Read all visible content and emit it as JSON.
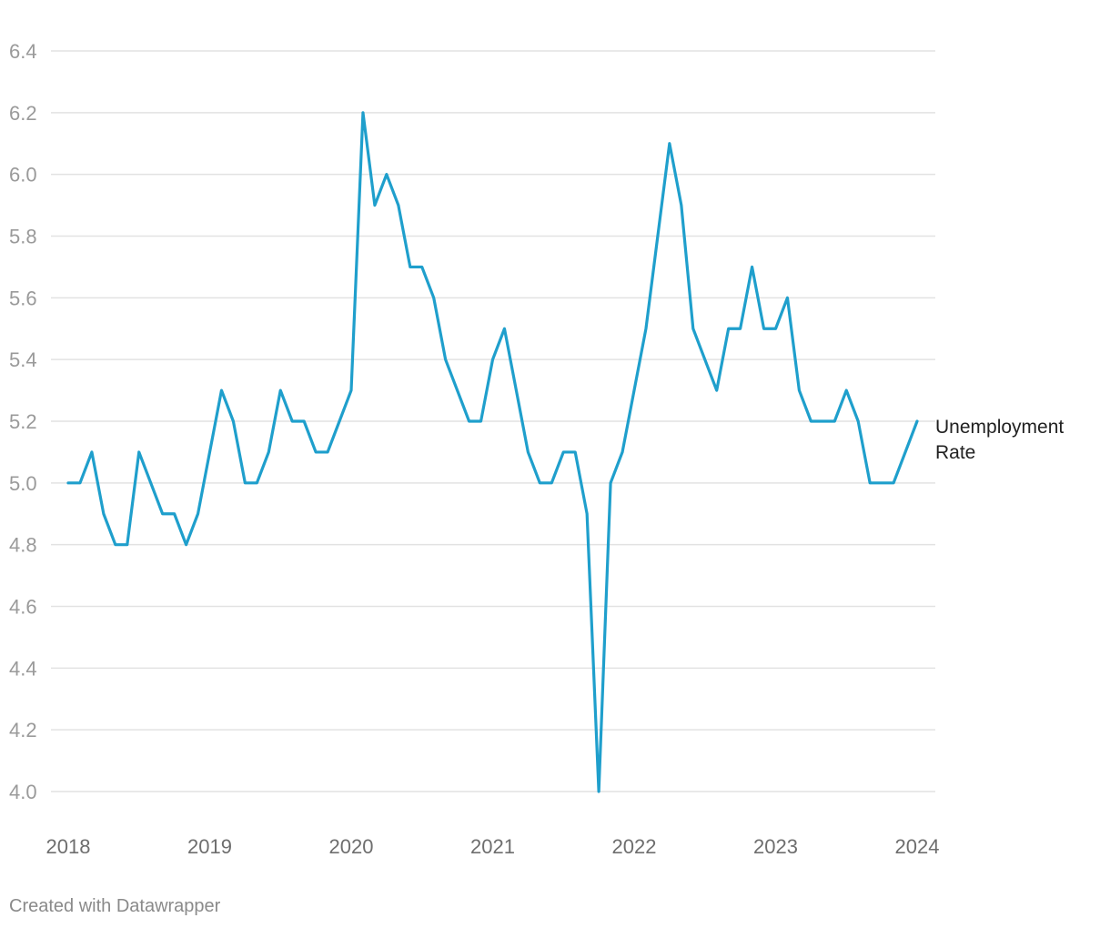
{
  "chart_data": {
    "type": "line",
    "title": "",
    "xlabel": "",
    "ylabel": "",
    "x_ticks": [
      "2018",
      "2019",
      "2020",
      "2021",
      "2022",
      "2023",
      "2024"
    ],
    "y_ticks": [
      "4.0",
      "4.2",
      "4.4",
      "4.6",
      "4.8",
      "5.0",
      "5.2",
      "5.4",
      "5.6",
      "5.8",
      "6.0",
      "6.2",
      "6.4"
    ],
    "ylim": [
      4.0,
      6.4
    ],
    "xlim": [
      "2018-01",
      "2024-01"
    ],
    "grid": true,
    "legend": "none",
    "x": [
      "2018-01",
      "2018-02",
      "2018-03",
      "2018-04",
      "2018-05",
      "2018-06",
      "2018-07",
      "2018-08",
      "2018-09",
      "2018-10",
      "2018-11",
      "2018-12",
      "2019-01",
      "2019-02",
      "2019-03",
      "2019-04",
      "2019-05",
      "2019-06",
      "2019-07",
      "2019-08",
      "2019-09",
      "2019-10",
      "2019-11",
      "2019-12",
      "2020-01",
      "2020-02",
      "2020-03",
      "2020-04",
      "2020-05",
      "2020-06",
      "2020-07",
      "2020-08",
      "2020-09",
      "2020-10",
      "2020-11",
      "2020-12",
      "2021-01",
      "2021-02",
      "2021-03",
      "2021-04",
      "2021-05",
      "2021-06",
      "2021-07",
      "2021-08",
      "2021-09",
      "2021-10",
      "2021-11",
      "2021-12",
      "2022-01",
      "2022-02",
      "2022-03",
      "2022-04",
      "2022-05",
      "2022-06",
      "2022-07",
      "2022-08",
      "2022-09",
      "2022-10",
      "2022-11",
      "2022-12",
      "2023-01",
      "2023-02",
      "2023-03",
      "2023-04",
      "2023-05",
      "2023-06",
      "2023-07",
      "2023-08",
      "2023-09",
      "2023-10",
      "2023-11",
      "2023-12",
      "2024-01"
    ],
    "series": [
      {
        "name": "Unemployment Rate",
        "color": "#1f9fcc",
        "values": [
          5.0,
          5.0,
          5.1,
          4.9,
          4.8,
          4.8,
          5.1,
          5.0,
          4.9,
          4.9,
          4.8,
          4.9,
          5.1,
          5.3,
          5.2,
          5.0,
          5.0,
          5.1,
          5.3,
          5.2,
          5.2,
          5.1,
          5.1,
          5.2,
          5.3,
          6.2,
          5.9,
          6.0,
          5.9,
          5.7,
          5.7,
          5.6,
          5.4,
          5.3,
          5.2,
          5.2,
          5.4,
          5.5,
          5.3,
          5.1,
          5.0,
          5.0,
          5.1,
          5.1,
          4.9,
          4.0,
          5.0,
          5.1,
          5.3,
          5.5,
          5.8,
          6.1,
          5.9,
          5.5,
          5.4,
          5.3,
          5.5,
          5.5,
          5.7,
          5.5,
          5.5,
          5.6,
          5.3,
          5.2,
          5.2,
          5.2,
          5.3,
          5.2,
          5.0,
          5.0,
          5.0,
          5.1,
          5.2
        ]
      }
    ]
  },
  "series_label_lines": [
    "Unemployment",
    "Rate"
  ],
  "credit": "Created with Datawrapper"
}
